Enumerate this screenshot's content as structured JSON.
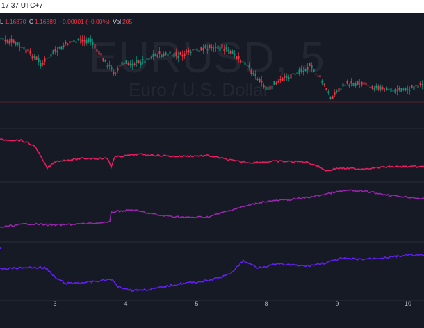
{
  "header": {
    "time": "17:37 UTC+7"
  },
  "legend": {
    "low_label": "L",
    "low_value": "1.16870",
    "close_label": "C",
    "close_value": "1.16889",
    "change": "−0.00001 (−0.00%)",
    "vol_label": "Vol",
    "vol_value": "205"
  },
  "watermark": {
    "symbol": "EURUSD, 5",
    "description": "Euro / U.S. Dollar"
  },
  "colors": {
    "background": "#161a25",
    "grid": "#2a2e39",
    "candle_up": "#089981",
    "candle_down": "#f23645",
    "line_pink": "#e91e63",
    "line_purple": "#9c27b0",
    "line_indigo": "#651fff",
    "price_line": "#8b1e2e"
  },
  "x_axis": {
    "ticks": [
      "3",
      "4",
      "5",
      "8",
      "9",
      "10"
    ]
  }
}
